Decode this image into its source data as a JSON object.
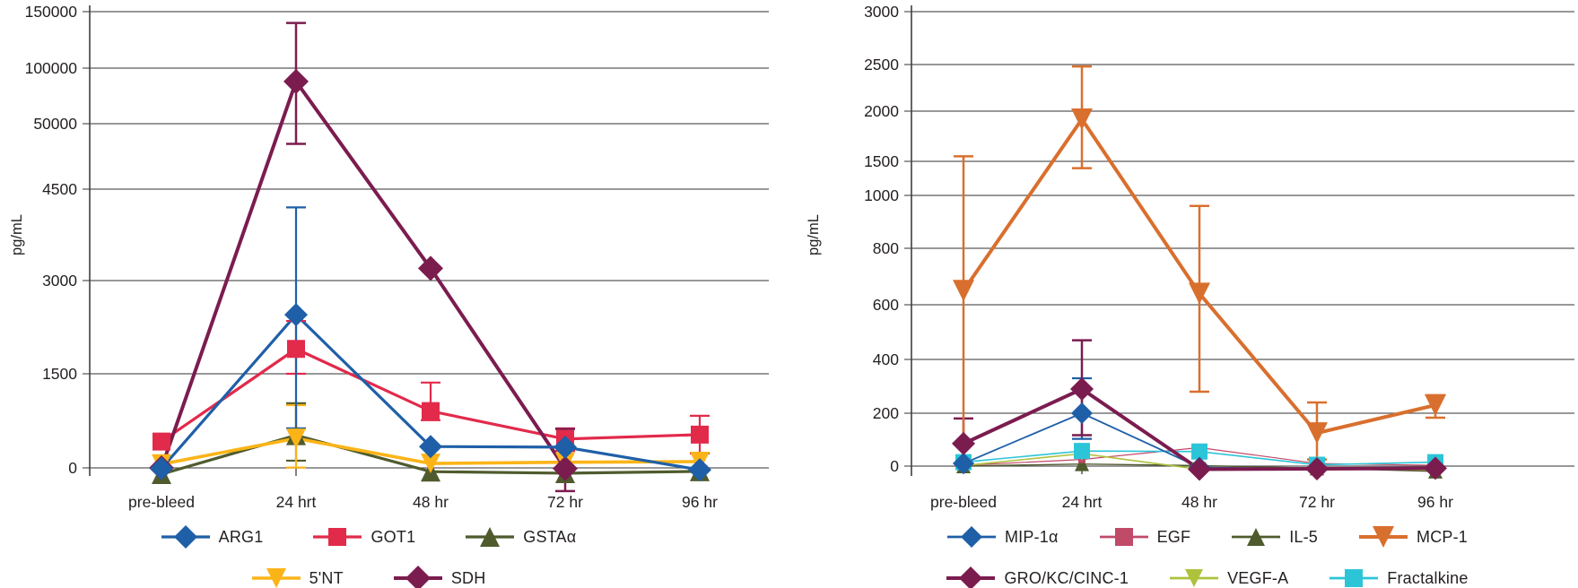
{
  "figure": {
    "description": "Two broken-axis line charts of analyte concentrations (pg/mL) over time after bleed",
    "y_axis_title": "pg/mL"
  },
  "chart_data": [
    {
      "id": "left-enzyme-chart",
      "type": "line",
      "title": "",
      "xlabel": "",
      "ylabel": "pg/mL",
      "broken_axis": true,
      "categories": [
        "pre-bleed",
        "24 hrt",
        "48 hr",
        "72 hr",
        "96 hr"
      ],
      "y_tick_labels": [
        "0",
        "1500",
        "3000",
        "4500",
        "50000",
        "100000",
        "150000"
      ],
      "y_tick_values": [
        0,
        1500,
        3000,
        4500,
        50000,
        100000,
        150000
      ],
      "legend_position": "bottom",
      "grid": true,
      "series": [
        {
          "name": "ARG1",
          "color": "#1F5FA8",
          "marker": "diamond",
          "marker_size": 13,
          "line_width": 3.2,
          "values": [
            -10,
            2450,
            340,
            330,
            -30
          ],
          "errors": {
            "1": {
              "top": 4200,
              "bottom": 630
            }
          }
        },
        {
          "name": "GOT1",
          "color": "#E22A4B",
          "marker": "square",
          "marker_size": 10,
          "line_width": 3.2,
          "values": [
            420,
            1900,
            905,
            460,
            530
          ],
          "errors": {
            "1": {
              "top": 2350,
              "bottom": 1500
            },
            "2": {
              "top": 1360,
              "bottom": 760
            },
            "3": {
              "top": 630,
              "bottom": 270
            },
            "4": {
              "top": 830,
              "bottom": 230
            }
          }
        },
        {
          "name": "GSTAα",
          "color": "#4F5B2D",
          "marker": "triangle-up",
          "marker_size": 11,
          "line_width": 3.2,
          "values": [
            -100,
            520,
            -60,
            -85,
            -55
          ],
          "errors": {
            "1": {
              "top": 1030,
              "bottom": 115
            }
          }
        },
        {
          "name": "5'NT",
          "color": "#FBB418",
          "marker": "triangle-down",
          "marker_size": 11,
          "line_width": 3.6,
          "values": [
            60,
            470,
            70,
            90,
            100
          ],
          "errors": {
            "1": {
              "top": 1000,
              "bottom": 5
            }
          }
        },
        {
          "name": "SDH",
          "color": "#7B1C4F",
          "marker": "diamond",
          "marker_size": 14,
          "line_width": 4,
          "values": [
            0,
            88000,
            3200,
            -10,
            null
          ],
          "errors": {
            "1": {
              "top": 140000,
              "bottom": 36000
            },
            "3": {
              "top": 620,
              "bottom": -370
            }
          }
        }
      ],
      "legend_rows": [
        [
          "ARG1",
          "GOT1",
          "GSTAα"
        ],
        [
          "5'NT",
          "SDH"
        ]
      ]
    },
    {
      "id": "right-cytokine-chart",
      "type": "line",
      "title": "",
      "xlabel": "",
      "ylabel": "pg/mL",
      "broken_axis": true,
      "categories": [
        "pre-bleed",
        "24 hrt",
        "48 hr",
        "72 hr",
        "96 hr"
      ],
      "y_tick_labels": [
        "0",
        "200",
        "400",
        "600",
        "800",
        "1000",
        "1500",
        "2000",
        "2500",
        "3000"
      ],
      "y_tick_values": [
        0,
        200,
        400,
        600,
        800,
        1000,
        1500,
        2000,
        2500,
        3000
      ],
      "legend_position": "bottom",
      "grid": true,
      "series": [
        {
          "name": "MIP-1α",
          "color": "#1F5FA8",
          "marker": "diamond",
          "marker_size": 12,
          "line_width": 1.8,
          "values": [
            10,
            200,
            -5,
            -10,
            -10
          ],
          "errors": {
            "1": {
              "top": 330,
              "bottom": 103
            }
          }
        },
        {
          "name": "EGF",
          "color": "#C04A68",
          "marker": "square",
          "marker_size": 4,
          "line_width": 1.2,
          "values": [
            3,
            25,
            70,
            10,
            3
          ],
          "errors": {}
        },
        {
          "name": "IL-5",
          "color": "#4F5B2D",
          "marker": "triangle-up",
          "marker_size": 8,
          "line_width": 1.4,
          "values": [
            0,
            8,
            2,
            -8,
            -20
          ],
          "errors": {}
        },
        {
          "name": "MCP-1",
          "color": "#D96F2E",
          "marker": "triangle-down",
          "marker_size": 12,
          "line_width": 4,
          "values": [
            650,
            1920,
            640,
            125,
            230
          ],
          "errors": {
            "0": {
              "top": 1550,
              "bottom": 10
            },
            "1": {
              "top": 2480,
              "bottom": 1400
            },
            "2": {
              "top": 960,
              "bottom": 280
            },
            "3": {
              "top": 240,
              "bottom": 25
            },
            "4": {
              "top": 267,
              "bottom": 183
            }
          }
        },
        {
          "name": "GRO/KC/CINC-1",
          "color": "#7B1C4F",
          "marker": "diamond",
          "marker_size": 13,
          "line_width": 4,
          "values": [
            85,
            290,
            -12,
            -10,
            -8
          ],
          "errors": {
            "0": {
              "top": 180,
              "bottom": 85
            },
            "1": {
              "top": 470,
              "bottom": 117
            }
          }
        },
        {
          "name": "VEGF-A",
          "color": "#AEC23C",
          "marker": "triangle-down",
          "marker_size": 8,
          "line_width": 1.6,
          "values": [
            2,
            47,
            -12,
            -6,
            -15
          ],
          "errors": {}
        },
        {
          "name": "Fractalkine",
          "color": "#2CC5D8",
          "marker": "square",
          "marker_size": 9,
          "line_width": 1.6,
          "values": [
            15,
            57,
            55,
            5,
            15
          ],
          "errors": {}
        }
      ],
      "legend_rows": [
        [
          "MIP-1α",
          "EGF",
          "IL-5",
          "MCP-1"
        ],
        [
          "GRO/KC/CINC-1",
          "VEGF-A",
          "Fractalkine"
        ]
      ]
    }
  ]
}
